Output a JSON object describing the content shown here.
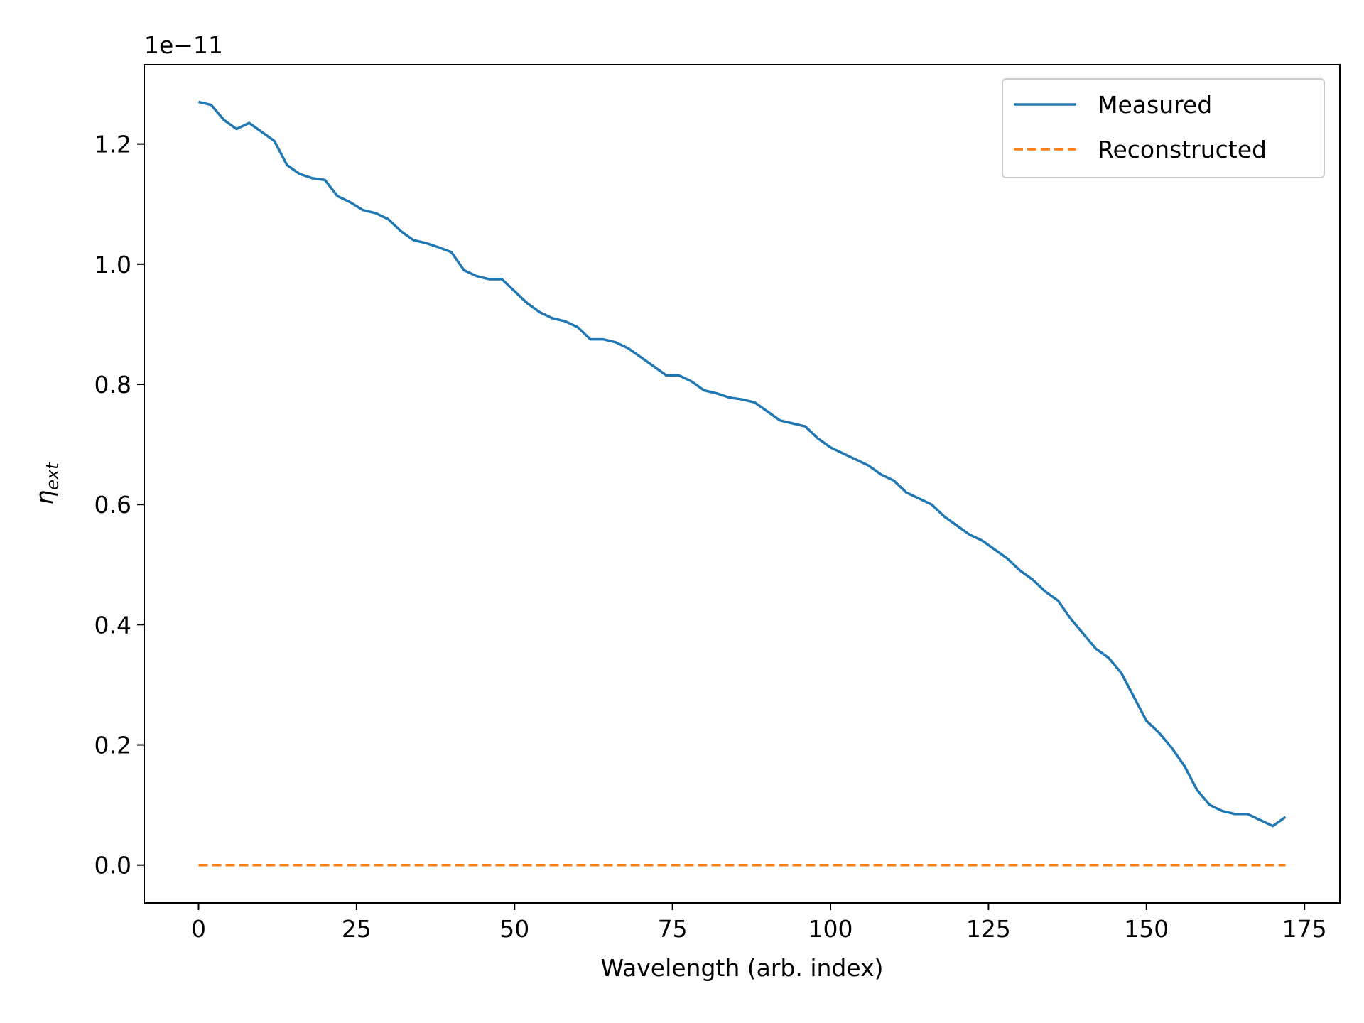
{
  "chart_data": {
    "type": "line",
    "title": "",
    "xlabel": "Wavelength (arb. index)",
    "ylabel_symbol": "η",
    "ylabel_subscript": "ext",
    "y_offset_label": "1e−11",
    "xlim": [
      -8.6,
      180.6
    ],
    "ylim": [
      -0.063,
      1.332
    ],
    "y_scale_factor": 1e-11,
    "x_ticks": [
      {
        "value": 0,
        "label": "0"
      },
      {
        "value": 25,
        "label": "25"
      },
      {
        "value": 50,
        "label": "50"
      },
      {
        "value": 75,
        "label": "75"
      },
      {
        "value": 100,
        "label": "100"
      },
      {
        "value": 125,
        "label": "125"
      },
      {
        "value": 150,
        "label": "150"
      },
      {
        "value": 175,
        "label": "175"
      }
    ],
    "y_ticks": [
      {
        "value": 0.0,
        "label": "0.0"
      },
      {
        "value": 0.2,
        "label": "0.2"
      },
      {
        "value": 0.4,
        "label": "0.4"
      },
      {
        "value": 0.6,
        "label": "0.6"
      },
      {
        "value": 0.8,
        "label": "0.8"
      },
      {
        "value": 1.0,
        "label": "1.0"
      },
      {
        "value": 1.2,
        "label": "1.2"
      }
    ],
    "grid": false,
    "legend_position": "top-right",
    "series": [
      {
        "name": "Measured",
        "color": "#1f77b4",
        "style": "solid",
        "x": [
          0,
          2,
          4,
          6,
          8,
          10,
          12,
          14,
          16,
          18,
          20,
          22,
          24,
          26,
          28,
          30,
          32,
          34,
          36,
          38,
          40,
          42,
          44,
          46,
          48,
          50,
          52,
          54,
          56,
          58,
          60,
          62,
          64,
          66,
          68,
          70,
          72,
          74,
          76,
          78,
          80,
          82,
          84,
          86,
          88,
          90,
          92,
          94,
          96,
          98,
          100,
          102,
          104,
          106,
          108,
          110,
          112,
          114,
          116,
          118,
          120,
          122,
          124,
          126,
          128,
          130,
          132,
          134,
          136,
          138,
          140,
          142,
          144,
          146,
          148,
          150,
          152,
          154,
          156,
          158,
          160,
          162,
          164,
          166,
          168,
          170,
          172
        ],
        "y": [
          1.27,
          1.265,
          1.24,
          1.225,
          1.235,
          1.22,
          1.205,
          1.165,
          1.15,
          1.143,
          1.14,
          1.113,
          1.103,
          1.09,
          1.085,
          1.075,
          1.055,
          1.04,
          1.035,
          1.028,
          1.02,
          0.99,
          0.98,
          0.975,
          0.975,
          0.955,
          0.935,
          0.92,
          0.91,
          0.905,
          0.895,
          0.875,
          0.875,
          0.87,
          0.86,
          0.845,
          0.83,
          0.815,
          0.815,
          0.805,
          0.79,
          0.785,
          0.778,
          0.775,
          0.77,
          0.755,
          0.74,
          0.735,
          0.73,
          0.71,
          0.695,
          0.685,
          0.675,
          0.665,
          0.65,
          0.64,
          0.62,
          0.61,
          0.6,
          0.58,
          0.565,
          0.55,
          0.54,
          0.525,
          0.51,
          0.49,
          0.475,
          0.455,
          0.44,
          0.41,
          0.385,
          0.36,
          0.345,
          0.32,
          0.28,
          0.24,
          0.22,
          0.195,
          0.165,
          0.125,
          0.1,
          0.09,
          0.085,
          0.085,
          0.075,
          0.065,
          0.08
        ]
      },
      {
        "name": "Reconstructed",
        "color": "#ff7f0e",
        "style": "dashed",
        "x": [
          0,
          172
        ],
        "y": [
          0.0,
          0.0
        ]
      }
    ]
  }
}
